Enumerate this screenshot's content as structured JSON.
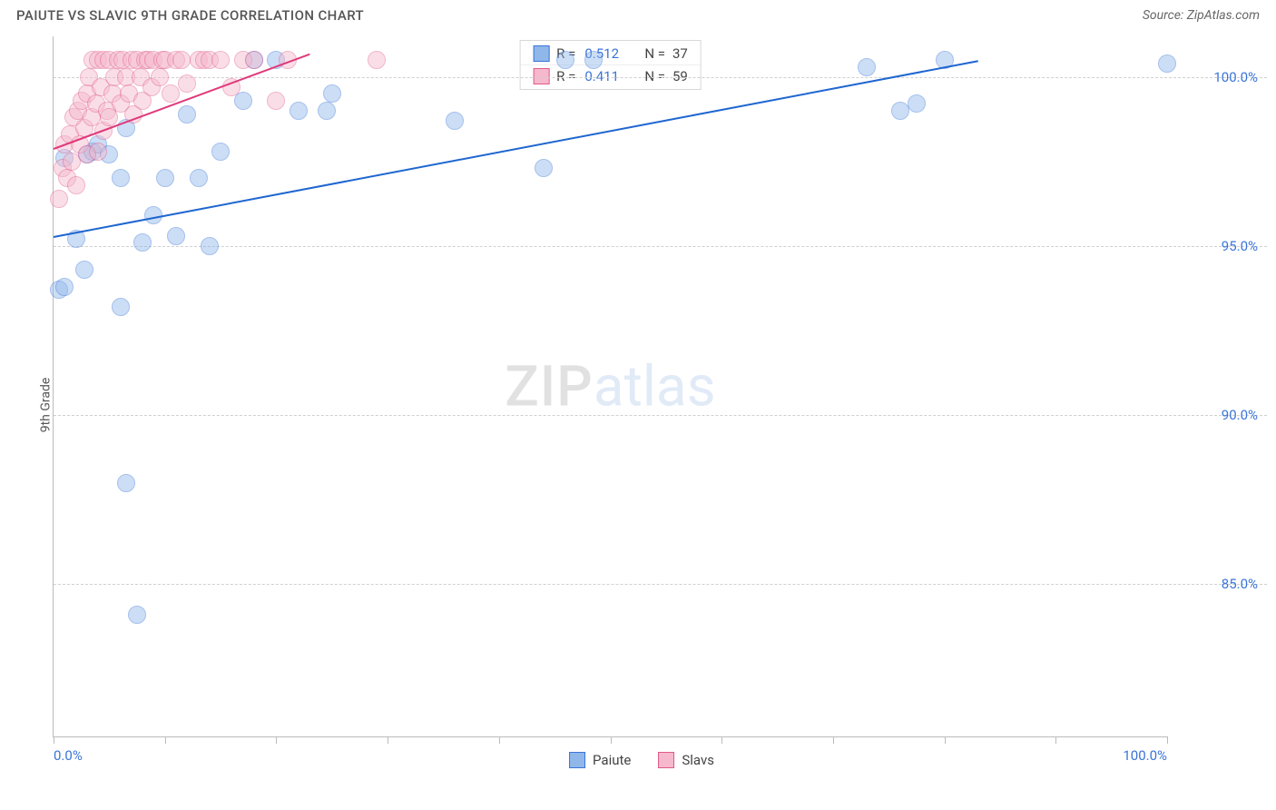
{
  "title": "PAIUTE VS SLAVIC 9TH GRADE CORRELATION CHART",
  "source": "Source: ZipAtlas.com",
  "watermark_left": "ZIP",
  "watermark_right": "atlas",
  "chart": {
    "type": "scatter",
    "y_axis_label": "9th Grade",
    "xlim": [
      0,
      100
    ],
    "ylim": [
      80.5,
      101.2
    ],
    "x_ticks": [
      0,
      10,
      20,
      30,
      40,
      50,
      60,
      70,
      80,
      90,
      100
    ],
    "x_tick_labels_visible": {
      "0": "0.0%",
      "100": "100.0%"
    },
    "y_ticks": [
      85,
      90,
      95,
      100
    ],
    "y_tick_labels": {
      "85": "85.0%",
      "90": "90.0%",
      "95": "95.0%",
      "100": "100.0%"
    },
    "grid_color": "#d0d0d0",
    "background_color": "#ffffff",
    "point_radius": 10,
    "point_opacity": 0.45,
    "series": [
      {
        "name": "Paiute",
        "fill": "#8fb7ea",
        "stroke": "#3a74d8",
        "trend": {
          "x1": 0,
          "y1": 95.3,
          "x2": 83,
          "y2": 100.5,
          "color": "#1e66d0",
          "width": 2
        },
        "points": [
          [
            0.5,
            93.7
          ],
          [
            1.0,
            93.8
          ],
          [
            2.8,
            94.3
          ],
          [
            6.0,
            93.2
          ],
          [
            6.5,
            88.0
          ],
          [
            7.5,
            84.1
          ],
          [
            1.0,
            97.6
          ],
          [
            2.0,
            95.2
          ],
          [
            3.0,
            97.7
          ],
          [
            3.5,
            97.8
          ],
          [
            4.0,
            98.0
          ],
          [
            5.0,
            97.7
          ],
          [
            6.0,
            97.0
          ],
          [
            6.5,
            98.5
          ],
          [
            8.0,
            95.1
          ],
          [
            9.0,
            95.9
          ],
          [
            10.0,
            97.0
          ],
          [
            11.0,
            95.3
          ],
          [
            12.0,
            98.9
          ],
          [
            13.0,
            97.0
          ],
          [
            14.0,
            95.0
          ],
          [
            15.0,
            97.8
          ],
          [
            17.0,
            99.3
          ],
          [
            18.0,
            100.5
          ],
          [
            20.0,
            100.5
          ],
          [
            22.0,
            99.0
          ],
          [
            24.5,
            99.0
          ],
          [
            25.0,
            99.5
          ],
          [
            36.0,
            98.7
          ],
          [
            44.0,
            97.3
          ],
          [
            46.0,
            100.5
          ],
          [
            48.5,
            100.5
          ],
          [
            73.0,
            100.3
          ],
          [
            76.0,
            99.0
          ],
          [
            77.5,
            99.2
          ],
          [
            80.0,
            100.5
          ],
          [
            100.0,
            100.4
          ]
        ]
      },
      {
        "name": "Slavs",
        "fill": "#f5b8cc",
        "stroke": "#e05a8a",
        "trend": {
          "x1": 0,
          "y1": 97.9,
          "x2": 23,
          "y2": 100.7,
          "color": "#e03a7a",
          "width": 2
        },
        "points": [
          [
            0.5,
            96.4
          ],
          [
            0.8,
            97.3
          ],
          [
            1.0,
            98.0
          ],
          [
            1.2,
            97.0
          ],
          [
            1.5,
            98.3
          ],
          [
            1.6,
            97.5
          ],
          [
            1.8,
            98.8
          ],
          [
            2.0,
            96.8
          ],
          [
            2.2,
            99.0
          ],
          [
            2.4,
            98.0
          ],
          [
            2.5,
            99.3
          ],
          [
            2.8,
            98.5
          ],
          [
            3.0,
            99.5
          ],
          [
            3.0,
            97.7
          ],
          [
            3.2,
            100.0
          ],
          [
            3.4,
            98.8
          ],
          [
            3.5,
            100.5
          ],
          [
            3.8,
            99.2
          ],
          [
            4.0,
            100.5
          ],
          [
            4.0,
            97.8
          ],
          [
            4.2,
            99.7
          ],
          [
            4.5,
            100.5
          ],
          [
            4.5,
            98.4
          ],
          [
            4.8,
            99.0
          ],
          [
            5.0,
            100.5
          ],
          [
            5.0,
            98.8
          ],
          [
            5.3,
            99.5
          ],
          [
            5.5,
            100.0
          ],
          [
            5.8,
            100.5
          ],
          [
            6.0,
            99.2
          ],
          [
            6.2,
            100.5
          ],
          [
            6.5,
            100.0
          ],
          [
            6.8,
            99.5
          ],
          [
            7.0,
            100.5
          ],
          [
            7.2,
            98.9
          ],
          [
            7.5,
            100.5
          ],
          [
            7.8,
            100.0
          ],
          [
            8.0,
            99.3
          ],
          [
            8.2,
            100.5
          ],
          [
            8.5,
            100.5
          ],
          [
            8.8,
            99.7
          ],
          [
            9.0,
            100.5
          ],
          [
            9.5,
            100.0
          ],
          [
            9.8,
            100.5
          ],
          [
            10.0,
            100.5
          ],
          [
            10.5,
            99.5
          ],
          [
            11.0,
            100.5
          ],
          [
            11.5,
            100.5
          ],
          [
            12.0,
            99.8
          ],
          [
            13.0,
            100.5
          ],
          [
            13.5,
            100.5
          ],
          [
            14.0,
            100.5
          ],
          [
            15.0,
            100.5
          ],
          [
            16.0,
            99.7
          ],
          [
            17.0,
            100.5
          ],
          [
            18.0,
            100.5
          ],
          [
            20.0,
            99.3
          ],
          [
            21.0,
            100.5
          ],
          [
            29.0,
            100.5
          ]
        ]
      }
    ],
    "legend_top": [
      {
        "swatch_fill": "#8fb7ea",
        "swatch_stroke": "#3a74d8",
        "r_label": "R =",
        "r_value": "0.512",
        "n_label": "N =",
        "n_value": "37"
      },
      {
        "swatch_fill": "#f5b8cc",
        "swatch_stroke": "#e05a8a",
        "r_label": "R =",
        "r_value": "0.411",
        "n_label": "N =",
        "n_value": "59"
      }
    ],
    "legend_bottom": [
      {
        "swatch_fill": "#8fb7ea",
        "swatch_stroke": "#3a74d8",
        "label": "Paiute"
      },
      {
        "swatch_fill": "#f5b8cc",
        "swatch_stroke": "#e05a8a",
        "label": "Slavs"
      }
    ]
  }
}
